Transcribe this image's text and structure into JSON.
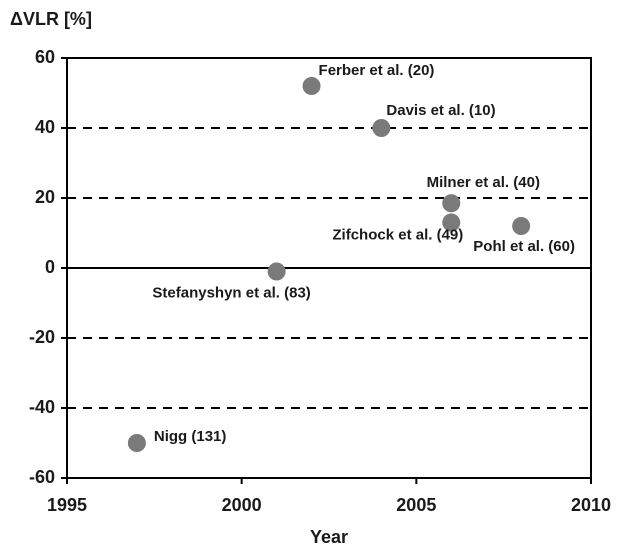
{
  "chart_data": {
    "type": "scatter",
    "y_label": "ΔVLR [%]",
    "x_label": "Year",
    "x": [
      1997,
      2001,
      2002,
      2004,
      2006,
      2006,
      2008
    ],
    "series": [
      {
        "color": "#7a7a7a",
        "values": [
          -50,
          -1,
          52,
          40,
          18.5,
          13,
          12
        ]
      }
    ],
    "point_labels": [
      "Nigg (131)",
      "Stefanyshyn et al. (83)",
      "Ferber et al. (20)",
      "Davis et al. (10)",
      "Milner et al. (40)",
      "Zifchock et al. (49)",
      "Pohl et al. (60)"
    ],
    "xlim": [
      1995,
      2010
    ],
    "xticks": [
      1995,
      2000,
      2005,
      2010
    ],
    "ylim": [
      -60,
      60
    ],
    "yticks": [
      60,
      40,
      20,
      0,
      -20,
      -40,
      -60
    ],
    "grid": true
  }
}
